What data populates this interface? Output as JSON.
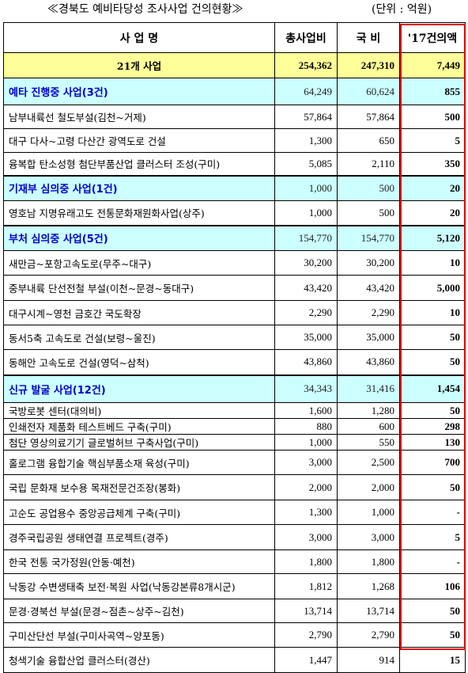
{
  "title": {
    "main": "≪경북도 예비타당성 조사사업 건의현황≫",
    "unit": "(단위 : 억원)"
  },
  "columns": [
    "사  업  명",
    "총사업비",
    "국  비",
    "'17건의액"
  ],
  "total": {
    "name": "21개 사업",
    "total_cost": "254,362",
    "national": "247,310",
    "request": "7,449"
  },
  "groups": [
    {
      "name": "예타 진행중 사업(3건)",
      "total_cost": "64,249",
      "national": "60,624",
      "request": "855",
      "items": [
        {
          "name": "남부내륙선 철도부설(김천~거제)",
          "total_cost": "57,864",
          "national": "57,864",
          "request": "500"
        },
        {
          "name": "대구 다사~고령 다산간 광역도로 건설",
          "total_cost": "1,300",
          "national": "650",
          "request": "5"
        },
        {
          "name": "융복합 탄소성형 첨단부품산업 클러스터 조성(구미)",
          "total_cost": "5,085",
          "national": "2,110",
          "request": "350"
        }
      ]
    },
    {
      "name": "기재부 심의중 사업(1건)",
      "total_cost": "1,000",
      "national": "500",
      "request": "20",
      "items": [
        {
          "name": "영호남 지명유래고도 전통문화재원화사업(상주)",
          "total_cost": "1,000",
          "national": "500",
          "request": "20"
        }
      ]
    },
    {
      "name": "부처 심의중 사업(5건)",
      "total_cost": "154,770",
      "national": "154,770",
      "request": "5,120",
      "items": [
        {
          "name": "새만금~포항고속도로(무주~대구)",
          "total_cost": "30,200",
          "national": "30,200",
          "request": "10"
        },
        {
          "name": "중부내륙 단선전철 부설(이천~문경~동대구)",
          "total_cost": "43,420",
          "national": "43,420",
          "request": "5,000"
        },
        {
          "name": "대구시계~영천 금호간 국도확장",
          "total_cost": "2,290",
          "national": "2,290",
          "request": "10"
        },
        {
          "name": "동서5축 고속도로 건설(보령~울진)",
          "total_cost": "35,000",
          "national": "35,000",
          "request": "50"
        },
        {
          "name": "동해안 고속도로 건설(영덕~삼척)",
          "total_cost": "43,860",
          "national": "43,860",
          "request": "50"
        }
      ]
    },
    {
      "name": "신규 발굴 사업(12건)",
      "total_cost": "34,343",
      "national": "31,416",
      "request": "1,454",
      "items": [
        {
          "name": "국방로봇 센터(대의비)",
          "total_cost": "1,600",
          "national": "1,280",
          "request": "50"
        },
        {
          "name": "인쇄전자 제품화 테스트베드 구축(구미)",
          "total_cost": "880",
          "national": "600",
          "request": "298"
        },
        {
          "name": "첨단 영상의료기기 글로벌허브 구축사업(구미)",
          "total_cost": "1,000",
          "national": "550",
          "request": "130"
        },
        {
          "name": "홀로그램 융합기술 핵심부품소재 육성(구미)",
          "total_cost": "3,000",
          "national": "2,500",
          "request": "700"
        },
        {
          "name": "국립 문화재 보수용 목재전문건조장(봉화)",
          "total_cost": "2,000",
          "national": "2,000",
          "request": "50"
        },
        {
          "name": "고순도 공업용수 중앙공급체계 구축(구미)",
          "total_cost": "1,300",
          "national": "1,000",
          "request": "-"
        },
        {
          "name": "경주국립공원 생태연결 프로젝트(경주)",
          "total_cost": "3,000",
          "national": "3,000",
          "request": "5"
        },
        {
          "name": "한국 전통 국가정원(안동·예천)",
          "total_cost": "1,800",
          "national": "1,800",
          "request": "-"
        },
        {
          "name": "낙동강 수변생태축 보전·복원 사업(낙동강본류8개시군)",
          "total_cost": "1,812",
          "national": "1,268",
          "request": "106"
        },
        {
          "name": "문경·경북선 부설(문경~점촌~상주~김천)",
          "total_cost": "13,714",
          "national": "13,714",
          "request": "50"
        },
        {
          "name": "구미산단선 부설(구미사곡역~양포동)",
          "total_cost": "2,790",
          "national": "2,790",
          "request": "50"
        },
        {
          "name": "청색기술 융합산업 클러스터(경산)",
          "total_cost": "1,447",
          "national": "914",
          "request": "15"
        }
      ]
    }
  ],
  "colors": {
    "total_bg": "#ffff99",
    "group_bg": "#ccffff",
    "group_text": "#0000cc",
    "highlight_border": "#e00000"
  }
}
